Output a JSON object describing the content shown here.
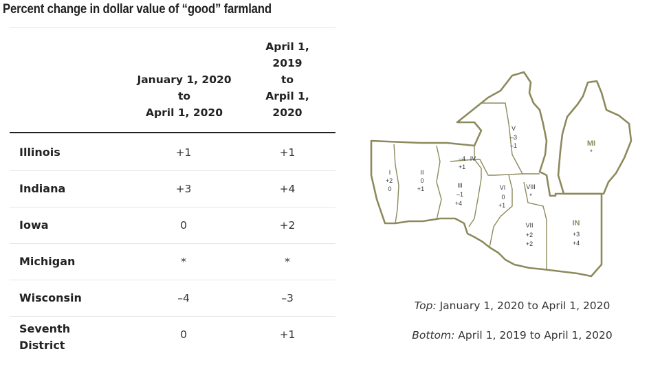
{
  "title": "Percent change in dollar value of “good” farmland",
  "table": {
    "col1_header": [
      "January 1, 2020",
      "to",
      "April 1, 2020"
    ],
    "col2_header": [
      "April 1,",
      "2019",
      "to",
      "Arpil 1,",
      "2020"
    ],
    "rows": [
      {
        "state": "Illinois",
        "q": "+1",
        "y": "+1"
      },
      {
        "state": "Indiana",
        "q": "+3",
        "y": "+4"
      },
      {
        "state": "Iowa",
        "q": "0",
        "y": "+2"
      },
      {
        "state": "Michigan",
        "q": "*",
        "y": "*"
      },
      {
        "state": "Wisconsin",
        "q": "–4",
        "y": "–3"
      },
      {
        "state": "Seventh District",
        "state_lines": [
          "Seventh",
          "District"
        ],
        "q": "0",
        "y": "+1"
      }
    ]
  },
  "map": {
    "districts": {
      "I": {
        "label": "I",
        "top": "+2",
        "bottom": "0"
      },
      "II": {
        "label": "II",
        "top": "0",
        "bottom": "+1"
      },
      "III": {
        "label": "III",
        "top": "–1",
        "bottom": "+4"
      },
      "IV": {
        "label": "IV",
        "top": "–4",
        "bottom": "+1"
      },
      "V": {
        "label": "V",
        "top": "–3",
        "bottom": "–1"
      },
      "VI": {
        "label": "VI",
        "top": "0",
        "bottom": "+1"
      },
      "VII": {
        "label": "VII",
        "top": "+2",
        "bottom": "+2"
      },
      "VIII": {
        "label": "VIII",
        "top": "*"
      },
      "MI": {
        "label": "MI",
        "value": "*"
      },
      "IN": {
        "label": "IN",
        "top": "+3",
        "bottom": "+4"
      }
    },
    "border_color": "#8c8a5c",
    "label_color": "#8c8a5c"
  },
  "legend": {
    "top_label": "Top:",
    "top_text": " January 1, 2020 to April 1, 2020",
    "bottom_label": "Bottom:",
    "bottom_text": " April 1, 2019 to April 1, 2020"
  }
}
